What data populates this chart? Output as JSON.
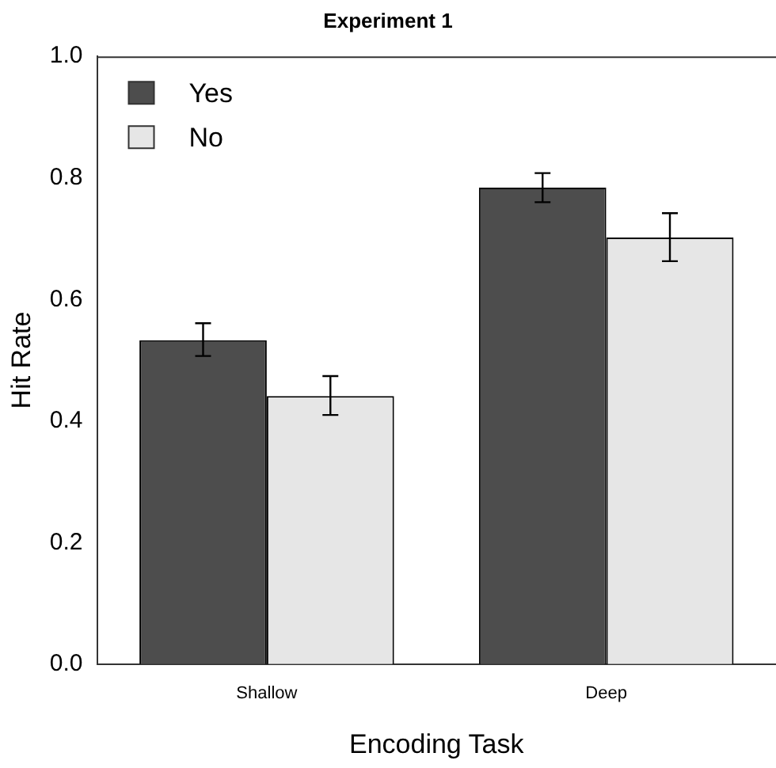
{
  "chart_data": {
    "type": "bar",
    "title": "Experiment 1",
    "xlabel": "Encoding Task",
    "ylabel": "Hit Rate",
    "categories": [
      "Shallow",
      "Deep"
    ],
    "series": [
      {
        "name": "Yes",
        "color": "#4d4d4d",
        "values": [
          0.533,
          0.784
        ],
        "errors": [
          [
            0.507,
            0.561
          ],
          [
            0.76,
            0.808
          ]
        ]
      },
      {
        "name": "No",
        "color": "#e6e6e6",
        "values": [
          0.441,
          0.702
        ],
        "errors": [
          [
            0.41,
            0.474
          ],
          [
            0.663,
            0.742
          ]
        ]
      }
    ],
    "ylim": [
      0,
      1
    ],
    "yticks": [
      {
        "value": 0,
        "label": "0.0"
      },
      0.2,
      0.4,
      0.6,
      0.8,
      {
        "value": 1,
        "label": "1.0"
      }
    ],
    "grid": false,
    "legend": "top left"
  }
}
